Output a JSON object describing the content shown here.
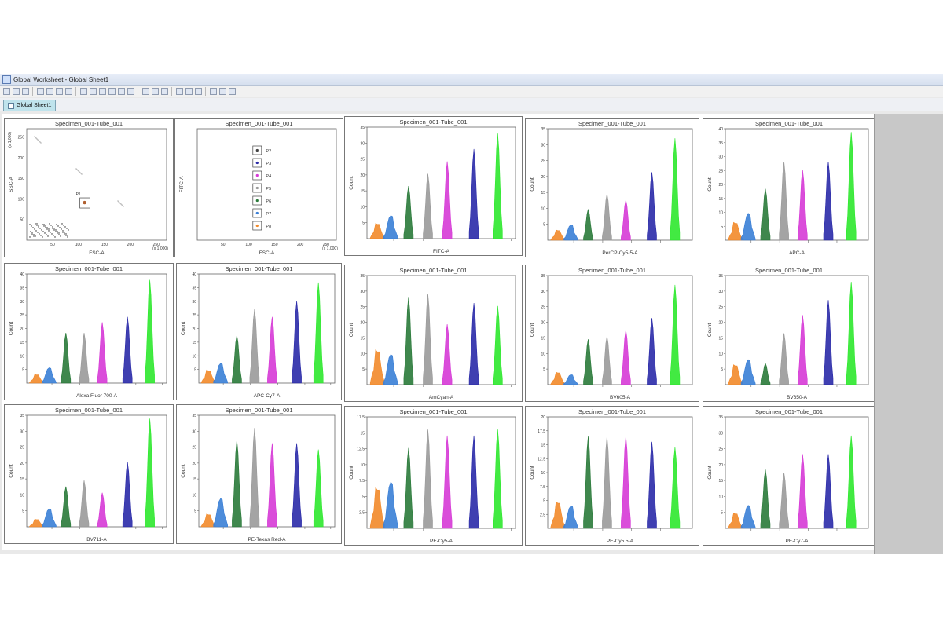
{
  "window": {
    "title": "Global Worksheet - Global Sheet1"
  },
  "tab": {
    "label": "Global Sheet1"
  },
  "toolbar": {
    "icons": [
      "save-icon",
      "print-icon",
      "export-icon",
      "pointer-icon",
      "zoom-icon",
      "zoom-in-icon",
      "zoom-out-icon",
      "dot-plot-icon",
      "histogram-icon",
      "contour-icon",
      "density-icon",
      "statistics-icon",
      "hierarchy-icon",
      "gate-rectangle-icon",
      "gate-polygon-icon",
      "gate-line-icon",
      "align-left-icon",
      "align-center-icon",
      "align-right-icon",
      "grid-icon",
      "layout-icon",
      "view-icon"
    ]
  },
  "colors": {
    "orange": "#f28a2a",
    "blue": "#3a7fd6",
    "green": "#2a7a3a",
    "gray": "#9a9a9a",
    "magenta": "#d63ad6",
    "navy": "#2a2aa8",
    "lime": "#2ee82e"
  },
  "panels": [
    {
      "title": "Specimen_001-Tube_001",
      "type": "scatter",
      "xlabel": "FSC-A",
      "ylabel": "SSC-A",
      "ymult": "(x 1,000)",
      "xmult": "(x 1,000)",
      "gate": "P1",
      "xticks": [
        "50",
        "100",
        "150",
        "200",
        "250"
      ],
      "yticks": [
        "50",
        "100",
        "150",
        "200",
        "250"
      ]
    },
    {
      "title": "Specimen_001-Tube_001",
      "type": "gates",
      "xlabel": "FSC-A",
      "ylabel": "FITC-A",
      "xmult": "(x 1,000)",
      "gates": [
        "P2",
        "P3",
        "P4",
        "P5",
        "P6",
        "P7",
        "P8"
      ],
      "xticks": [
        "50",
        "100",
        "150",
        "200",
        "250"
      ]
    },
    {
      "title": "Specimen_001-Tube_001",
      "type": "histogram",
      "xlabel": "FITC-A",
      "ylabel": "Count",
      "ymax": 35,
      "yticks": [
        "5",
        "10",
        "15",
        "20",
        "25",
        "30",
        "35"
      ],
      "peaks": [
        6,
        9,
        17,
        21,
        25,
        29,
        34
      ]
    },
    {
      "title": "Specimen_001-Tube_001",
      "type": "histogram",
      "xlabel": "PerCP-Cy5-5-A",
      "ylabel": "Count",
      "ymax": 35,
      "yticks": [
        "5",
        "10",
        "15",
        "20",
        "25",
        "30",
        "35"
      ],
      "peaks": [
        4,
        6,
        10,
        15,
        13,
        22,
        33
      ]
    },
    {
      "title": "Specimen_001-Tube_001",
      "type": "histogram",
      "xlabel": "APC-A",
      "ylabel": "Count",
      "ymax": 40,
      "yticks": [
        "5",
        "10",
        "15",
        "20",
        "25",
        "30",
        "35",
        "40"
      ],
      "peaks": [
        8,
        12,
        19,
        29,
        26,
        29,
        40
      ]
    },
    {
      "title": "Specimen_001-Tube_001",
      "type": "histogram",
      "xlabel": "Alexa Fluor 700-A",
      "ylabel": "Count",
      "ymax": 40,
      "yticks": [
        "5",
        "10",
        "15",
        "20",
        "25",
        "30",
        "35",
        "40"
      ],
      "peaks": [
        4,
        7,
        19,
        19,
        23,
        25,
        39
      ]
    },
    {
      "title": "Specimen_001-Tube_001",
      "type": "histogram",
      "xlabel": "APC-Cy7-A",
      "ylabel": "Count",
      "ymax": 40,
      "yticks": [
        "5",
        "10",
        "15",
        "20",
        "25",
        "30",
        "35",
        "40"
      ],
      "peaks": [
        6,
        9,
        18,
        28,
        25,
        31,
        38
      ]
    },
    {
      "title": "Specimen_001-Tube_001",
      "type": "histogram",
      "xlabel": "AmCyan-A",
      "ylabel": "Count",
      "ymax": 35,
      "yticks": [
        "5",
        "10",
        "15",
        "20",
        "25",
        "30",
        "35"
      ],
      "peaks": [
        14,
        12,
        29,
        30,
        20,
        27,
        26
      ]
    },
    {
      "title": "Specimen_001-Tube_001",
      "type": "histogram",
      "xlabel": "BV605-A",
      "ylabel": "Count",
      "ymax": 35,
      "yticks": [
        "5",
        "10",
        "15",
        "20",
        "25",
        "30",
        "35"
      ],
      "peaks": [
        5,
        4,
        15,
        16,
        18,
        22,
        33
      ]
    },
    {
      "title": "Specimen_001-Tube_001",
      "type": "histogram",
      "xlabel": "BV650-A",
      "ylabel": "Count",
      "ymax": 35,
      "yticks": [
        "5",
        "10",
        "15",
        "20",
        "25",
        "30",
        "35"
      ],
      "peaks": [
        8,
        10,
        7,
        17,
        23,
        28,
        34
      ]
    },
    {
      "title": "Specimen_001-Tube_001",
      "type": "histogram",
      "xlabel": "BV711-A",
      "ylabel": "Count",
      "ymax": 35,
      "yticks": [
        "5",
        "10",
        "15",
        "20",
        "25",
        "30",
        "35"
      ],
      "peaks": [
        3,
        7,
        13,
        15,
        11,
        21,
        35
      ]
    },
    {
      "title": "Specimen_001-Tube_001",
      "type": "histogram",
      "xlabel": "PE-Texas Red-A",
      "ylabel": "Count",
      "ymax": 35,
      "yticks": [
        "5",
        "10",
        "15",
        "20",
        "25",
        "30",
        "35"
      ],
      "peaks": [
        5,
        11,
        28,
        32,
        27,
        27,
        25
      ]
    },
    {
      "title": "Specimen_001-Tube_001",
      "type": "histogram",
      "xlabel": "PE-Cy5-A",
      "ylabel": "Count",
      "ymax": 17.5,
      "yticks": [
        "2.5",
        "5",
        "7.5",
        "10",
        "12.5",
        "15",
        "17.5"
      ],
      "peaks": [
        8,
        9,
        13,
        16,
        15,
        15,
        16
      ]
    },
    {
      "title": "Specimen_001-Tube_001",
      "type": "histogram",
      "xlabel": "PE-Cy5.5-A",
      "ylabel": "Count",
      "ymax": 20,
      "yticks": [
        "2.5",
        "5",
        "7.5",
        "10",
        "12.5",
        "15",
        "17.5",
        "20"
      ],
      "peaks": [
        6,
        5,
        17,
        17,
        17,
        16,
        15
      ]
    },
    {
      "title": "Specimen_001-Tube_001",
      "type": "histogram",
      "xlabel": "PE-Cy7-A",
      "ylabel": "Count",
      "ymax": 35,
      "yticks": [
        "5",
        "10",
        "15",
        "20",
        "25",
        "30",
        "35"
      ],
      "peaks": [
        6,
        9,
        19,
        18,
        24,
        24,
        30
      ]
    }
  ]
}
